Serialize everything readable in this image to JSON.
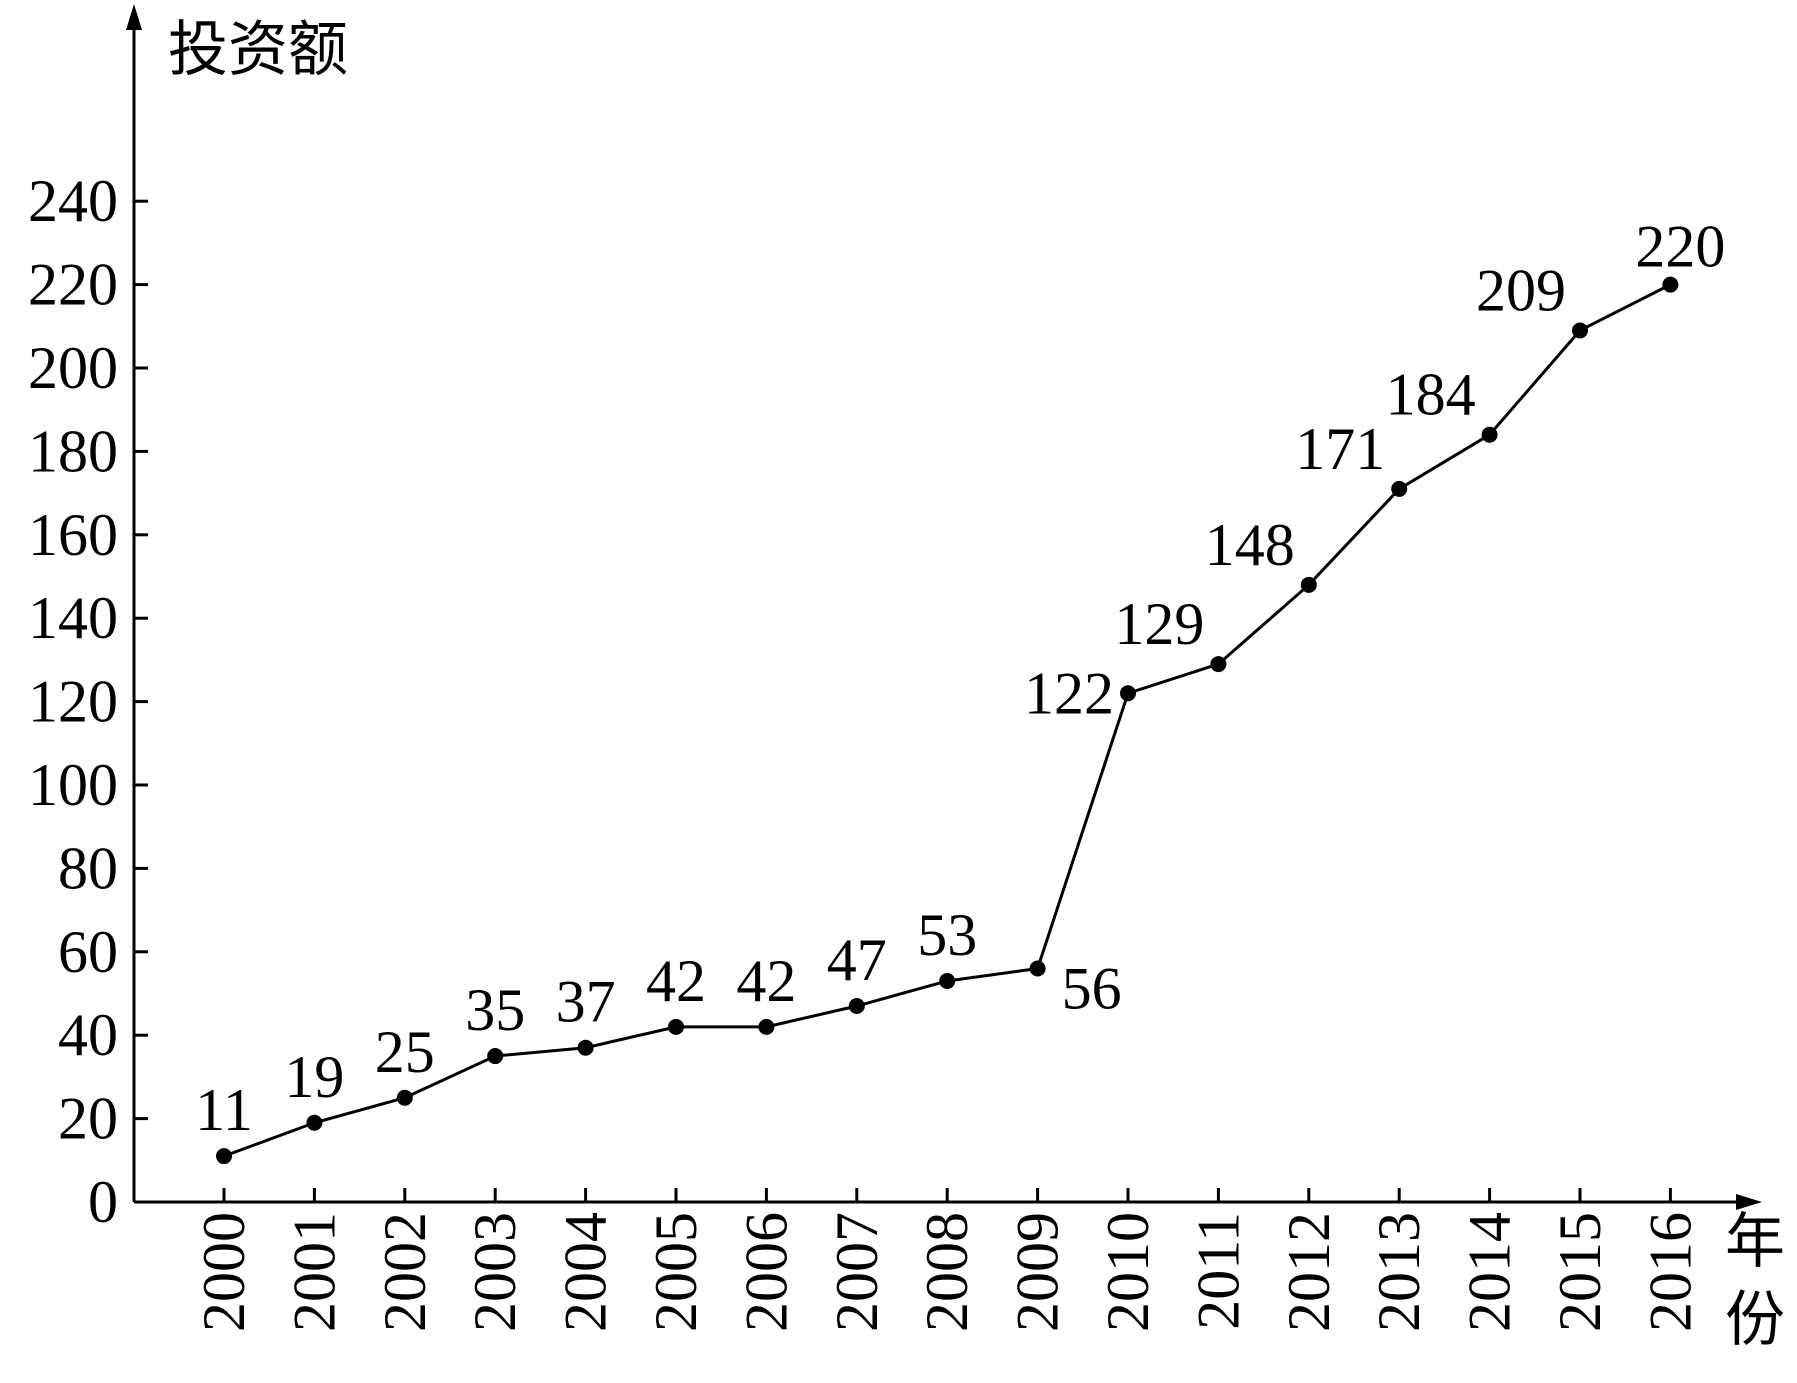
{
  "chart_data": {
    "type": "line",
    "title": "",
    "ylabel": "投资额",
    "xlabel": "年份",
    "categories": [
      "2000",
      "2001",
      "2002",
      "2003",
      "2004",
      "2005",
      "2006",
      "2007",
      "2008",
      "2009",
      "2010",
      "2011",
      "2012",
      "2013",
      "2014",
      "2015",
      "2016"
    ],
    "series": [
      {
        "values": [
          11,
          19,
          25,
          35,
          37,
          42,
          42,
          47,
          53,
          56,
          122,
          129,
          148,
          171,
          184,
          209,
          220
        ]
      }
    ],
    "ylim": [
      0,
      240
    ],
    "yticks": [
      "0",
      "20",
      "40",
      "60",
      "80",
      "100",
      "120",
      "140",
      "160",
      "180",
      "200",
      "220",
      "240"
    ],
    "data_labels": [
      "11",
      "19",
      "25",
      "35",
      "37",
      "42",
      "42",
      "47",
      "53",
      "56",
      "122",
      "129",
      "148",
      "171",
      "184",
      "209",
      "220"
    ],
    "grid": false,
    "legend": "none",
    "colors": {
      "line": "#000000",
      "marker": "#000000"
    }
  }
}
